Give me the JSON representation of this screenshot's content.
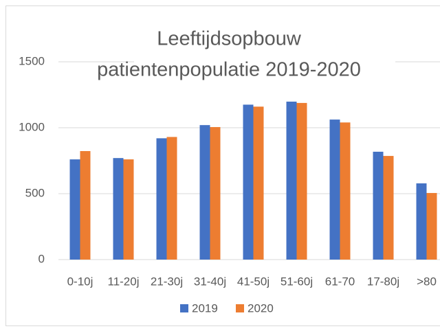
{
  "chart_data": {
    "type": "bar",
    "title": [
      "Leeftijdsopbouw",
      "patientenpopulatie 2019-2020"
    ],
    "categories": [
      "0-10j",
      "11-20j",
      "21-30j",
      "31-40j",
      "41-50j",
      "51-60j",
      "61-70",
      "17-80j",
      ">80"
    ],
    "series": [
      {
        "name": "2019",
        "color": "#4472c4",
        "values": [
          760,
          770,
          920,
          1020,
          1175,
          1198,
          1062,
          818,
          578
        ]
      },
      {
        "name": "2020",
        "color": "#ed7d31",
        "values": [
          823,
          760,
          930,
          1005,
          1160,
          1188,
          1040,
          786,
          505
        ]
      }
    ],
    "ylim": [
      0,
      1500
    ],
    "yticks": [
      0,
      500,
      1000,
      1500
    ],
    "grid": true,
    "legend": "bottom"
  }
}
